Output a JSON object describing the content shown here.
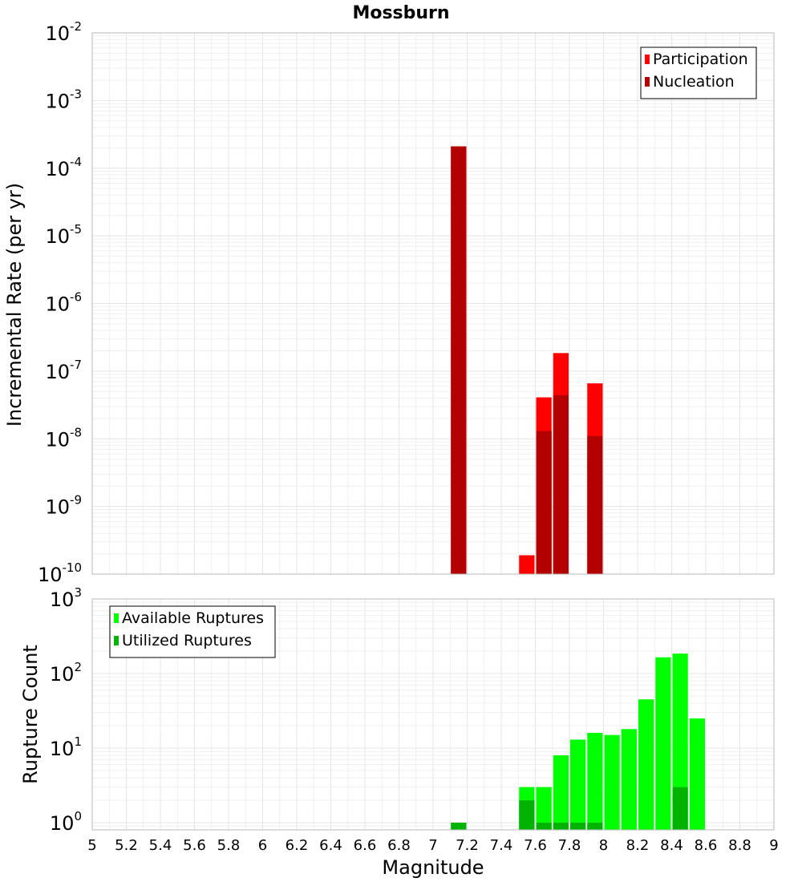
{
  "chart_data": [
    {
      "type": "bar",
      "title": "Mossburn",
      "xlabel": "",
      "ylabel": "Incremental Rate (per yr)",
      "xlim": [
        5,
        9
      ],
      "ylim": [
        1e-10,
        0.01
      ],
      "yscale": "log",
      "ytick_exponents": [
        -10,
        -9,
        -8,
        -7,
        -6,
        -5,
        -4,
        -3,
        -2
      ],
      "grid": true,
      "legend_position": "top-right",
      "bin_width": 0.1,
      "series": [
        {
          "name": "Participation",
          "color": "#ff0000",
          "x": [
            7.15,
            7.55,
            7.65,
            7.75,
            7.95
          ],
          "values": [
            0.00021,
            1.9e-10,
            4.1e-08,
            1.85e-07,
            6.6e-08
          ]
        },
        {
          "name": "Nucleation",
          "color": "#b30000",
          "x": [
            7.15,
            7.65,
            7.75,
            7.95
          ],
          "values": [
            0.00021,
            1.3e-08,
            4.4e-08,
            1.1e-08
          ]
        }
      ]
    },
    {
      "type": "bar",
      "title": "",
      "xlabel": "Magnitude",
      "ylabel": "Rupture Count",
      "xlim": [
        5,
        9
      ],
      "ylim": [
        0.8,
        1000
      ],
      "yscale": "log",
      "ytick_exponents": [
        0,
        1,
        2,
        3
      ],
      "grid": true,
      "legend_position": "top-left",
      "bin_width": 0.1,
      "xticks": [
        "5",
        "5.2",
        "5.4",
        "5.6",
        "5.8",
        "6",
        "6.2",
        "6.4",
        "6.6",
        "6.8",
        "7",
        "7.2",
        "7.4",
        "7.6",
        "7.8",
        "8",
        "8.2",
        "8.4",
        "8.6",
        "8.8",
        "9"
      ],
      "series": [
        {
          "name": "Available Ruptures",
          "color": "#00ff00",
          "x": [
            7.15,
            7.55,
            7.65,
            7.75,
            7.85,
            7.95,
            8.05,
            8.15,
            8.25,
            8.35,
            8.45,
            8.55
          ],
          "values": [
            1,
            3,
            3,
            8,
            13,
            16,
            15,
            18,
            45,
            165,
            185,
            25
          ]
        },
        {
          "name": "Utilized Ruptures",
          "color": "#00b300",
          "x": [
            7.15,
            7.55,
            7.65,
            7.75,
            7.85,
            7.95,
            8.45
          ],
          "values": [
            1,
            2,
            1,
            1,
            1,
            1,
            3
          ]
        }
      ]
    }
  ]
}
